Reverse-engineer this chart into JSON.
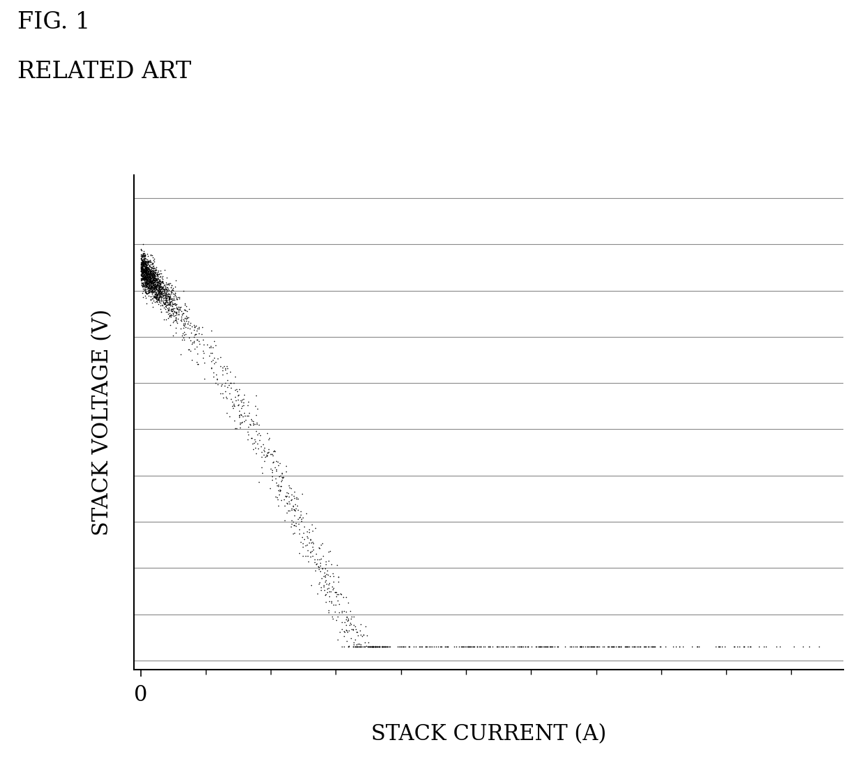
{
  "title_line1": "FIG. 1",
  "title_line2": "RELATED ART",
  "xlabel": "STACK CURRENT (A)",
  "ylabel": "STACK VOLTAGE (V)",
  "background_color": "#ffffff",
  "dot_color": "#000000",
  "dot_size": 5,
  "seed": 42,
  "grid_color": "#888888",
  "axis_color": "#000000",
  "title_fontsize": 24,
  "label_fontsize": 22,
  "tick_label_fontsize": 22,
  "n_dense": 1500,
  "n_mid": 600,
  "n_sparse": 250
}
